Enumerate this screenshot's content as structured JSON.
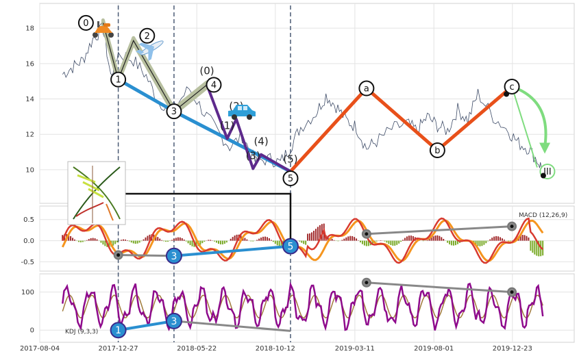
{
  "chart_data": {
    "type": "line",
    "panels": [
      {
        "name": "price",
        "ylim": [
          8.1,
          19.4
        ],
        "yticks": [
          "18",
          "16",
          "14",
          "12",
          "10"
        ],
        "ytick_values": [
          18,
          16,
          14,
          12,
          10
        ],
        "price_series": {
          "x": [
            0,
            20,
            40,
            60,
            80,
            95,
            110,
            140,
            165,
            190,
            220,
            250,
            280,
            305,
            330,
            355,
            380,
            410,
            430,
            450,
            470,
            500,
            520,
            540,
            560,
            580,
            600,
            620,
            650,
            680,
            700,
            720,
            740,
            760,
            780,
            800,
            820,
            850,
            880,
            900,
            920,
            940,
            950
          ],
          "y": [
            15.4,
            15.8,
            16.2,
            17.4,
            18.0,
            15.3,
            16.6,
            16.2,
            15.3,
            13.8,
            13.5,
            14.6,
            13.2,
            12.2,
            11.3,
            11.9,
            10.5,
            10.6,
            10.4,
            11.3,
            12.4,
            13.2,
            14.2,
            13.6,
            12.8,
            12.4,
            11.2,
            11.6,
            12.3,
            12.6,
            12.2,
            13.0,
            12.5,
            12.2,
            13.4,
            12.8,
            14.3,
            13.0,
            12.2,
            11.5,
            11.2,
            10.4,
            9.9
          ]
        },
        "waves": [
          {
            "label": "0",
            "x": 80,
            "y": 18.3
          },
          {
            "label": "1",
            "x": 110,
            "y": 15.1
          },
          {
            "label": "2",
            "x": 140,
            "y": 17.3
          },
          {
            "label": "3",
            "x": 220,
            "y": 13.3
          },
          {
            "label": "4",
            "x": 285,
            "y": 14.8
          },
          {
            "label": "5",
            "x": 450,
            "y": 9.9
          },
          {
            "label": "a",
            "x": 600,
            "y": 14.6
          },
          {
            "label": "b",
            "x": 740,
            "y": 11.1
          },
          {
            "label": "c",
            "x": 887,
            "y": 14.7
          },
          {
            "label": "III",
            "x": 945,
            "y": 9.9
          }
        ],
        "subwaves": [
          {
            "label": "(0)",
            "x": 285,
            "y": 15.4
          },
          {
            "label": "(1)",
            "x": 325,
            "y": 12.3
          },
          {
            "label": "(2)",
            "x": 343,
            "y": 13.4
          },
          {
            "label": "(3)",
            "x": 376,
            "y": 10.6
          },
          {
            "label": "(4)",
            "x": 392,
            "y": 11.4
          },
          {
            "label": "(5)",
            "x": 450,
            "y": 10.4
          }
        ]
      },
      {
        "name": "macd",
        "label": "MACD (12,26,9)",
        "ylim": [
          -0.72,
          0.82
        ],
        "yticks": [
          "0.5",
          "0.0",
          "-0.5"
        ],
        "ytick_values": [
          0.5,
          0.0,
          -0.5
        ],
        "divergence_points": [
          {
            "label": "",
            "x": 110,
            "y": -0.34
          },
          {
            "label": "3",
            "x": 220,
            "y": -0.36
          },
          {
            "label": "5",
            "x": 450,
            "y": -0.13
          },
          {
            "label": "",
            "x": 600,
            "y": 0.16
          },
          {
            "label": "",
            "x": 887,
            "y": 0.34
          }
        ]
      },
      {
        "name": "kdj",
        "label": "KDJ (9,3,3)",
        "ylim": [
          -32,
          148
        ],
        "yticks": [
          "100",
          "0"
        ],
        "ytick_values": [
          100,
          0
        ],
        "divergence_points": [
          {
            "label": "1",
            "x": 110,
            "y": 0
          },
          {
            "label": "3",
            "x": 220,
            "y": 24
          },
          {
            "label": "",
            "x": 600,
            "y": 125
          },
          {
            "label": "",
            "x": 887,
            "y": 100
          }
        ]
      }
    ],
    "x_tick_labels": [
      "2017-08-04",
      "2017-12-27",
      "2018-05-22",
      "2018-10-12",
      "2019-03-11",
      "2019-08-01",
      "2019-12-23"
    ],
    "x_tick_values": [
      -45,
      110,
      265,
      420,
      577,
      733,
      888
    ],
    "xlim": [
      -45,
      1010
    ],
    "vlines": [
      110,
      220,
      450
    ],
    "grid": true
  },
  "colors": {
    "impulse_fill": "#d8dcc0",
    "trend_blue": "#2a8fd0",
    "correction_red": "#e8501a",
    "sub_purple": "#5e2a8c",
    "kdj_purple": "#8e0a8c",
    "macd_orange": "#f5951e",
    "macd_red": "#d83a2f",
    "hist_pos": "#a0282a",
    "hist_neg": "#7aaa28",
    "divergence_gray": "#888888",
    "forecast_green": "#7fdc7f"
  },
  "icons": [
    "scooter-icon",
    "airplane-icon",
    "car-icon",
    "dna-thumbnail-icon"
  ]
}
